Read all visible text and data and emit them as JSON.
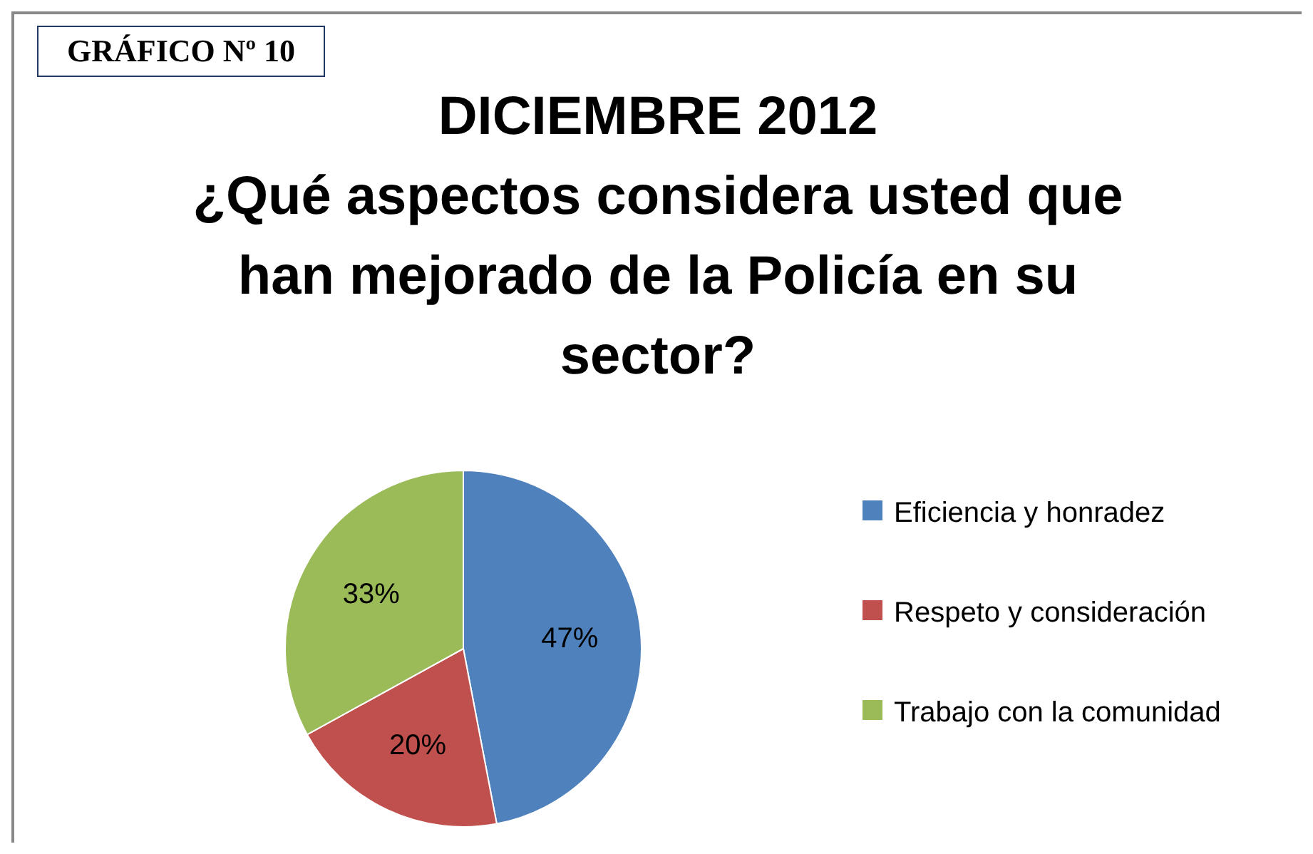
{
  "chart_data": {
    "type": "pie",
    "title": "DICIEMBRE 2012",
    "subtitle": "¿Qué aspectos considera usted que han mejorado de la Policía en su sector?",
    "annotations": [
      "GRÁFICO Nº 10"
    ],
    "categories": [
      "Eficiencia y honradez",
      "Respeto y consideración",
      "Trabajo con la comunidad"
    ],
    "values": [
      47,
      20,
      33
    ],
    "colors": [
      "#4f81bd",
      "#c0504d",
      "#9bbb59"
    ],
    "value_labels": [
      "47%",
      "20%",
      "33%"
    ],
    "legend": "right"
  }
}
